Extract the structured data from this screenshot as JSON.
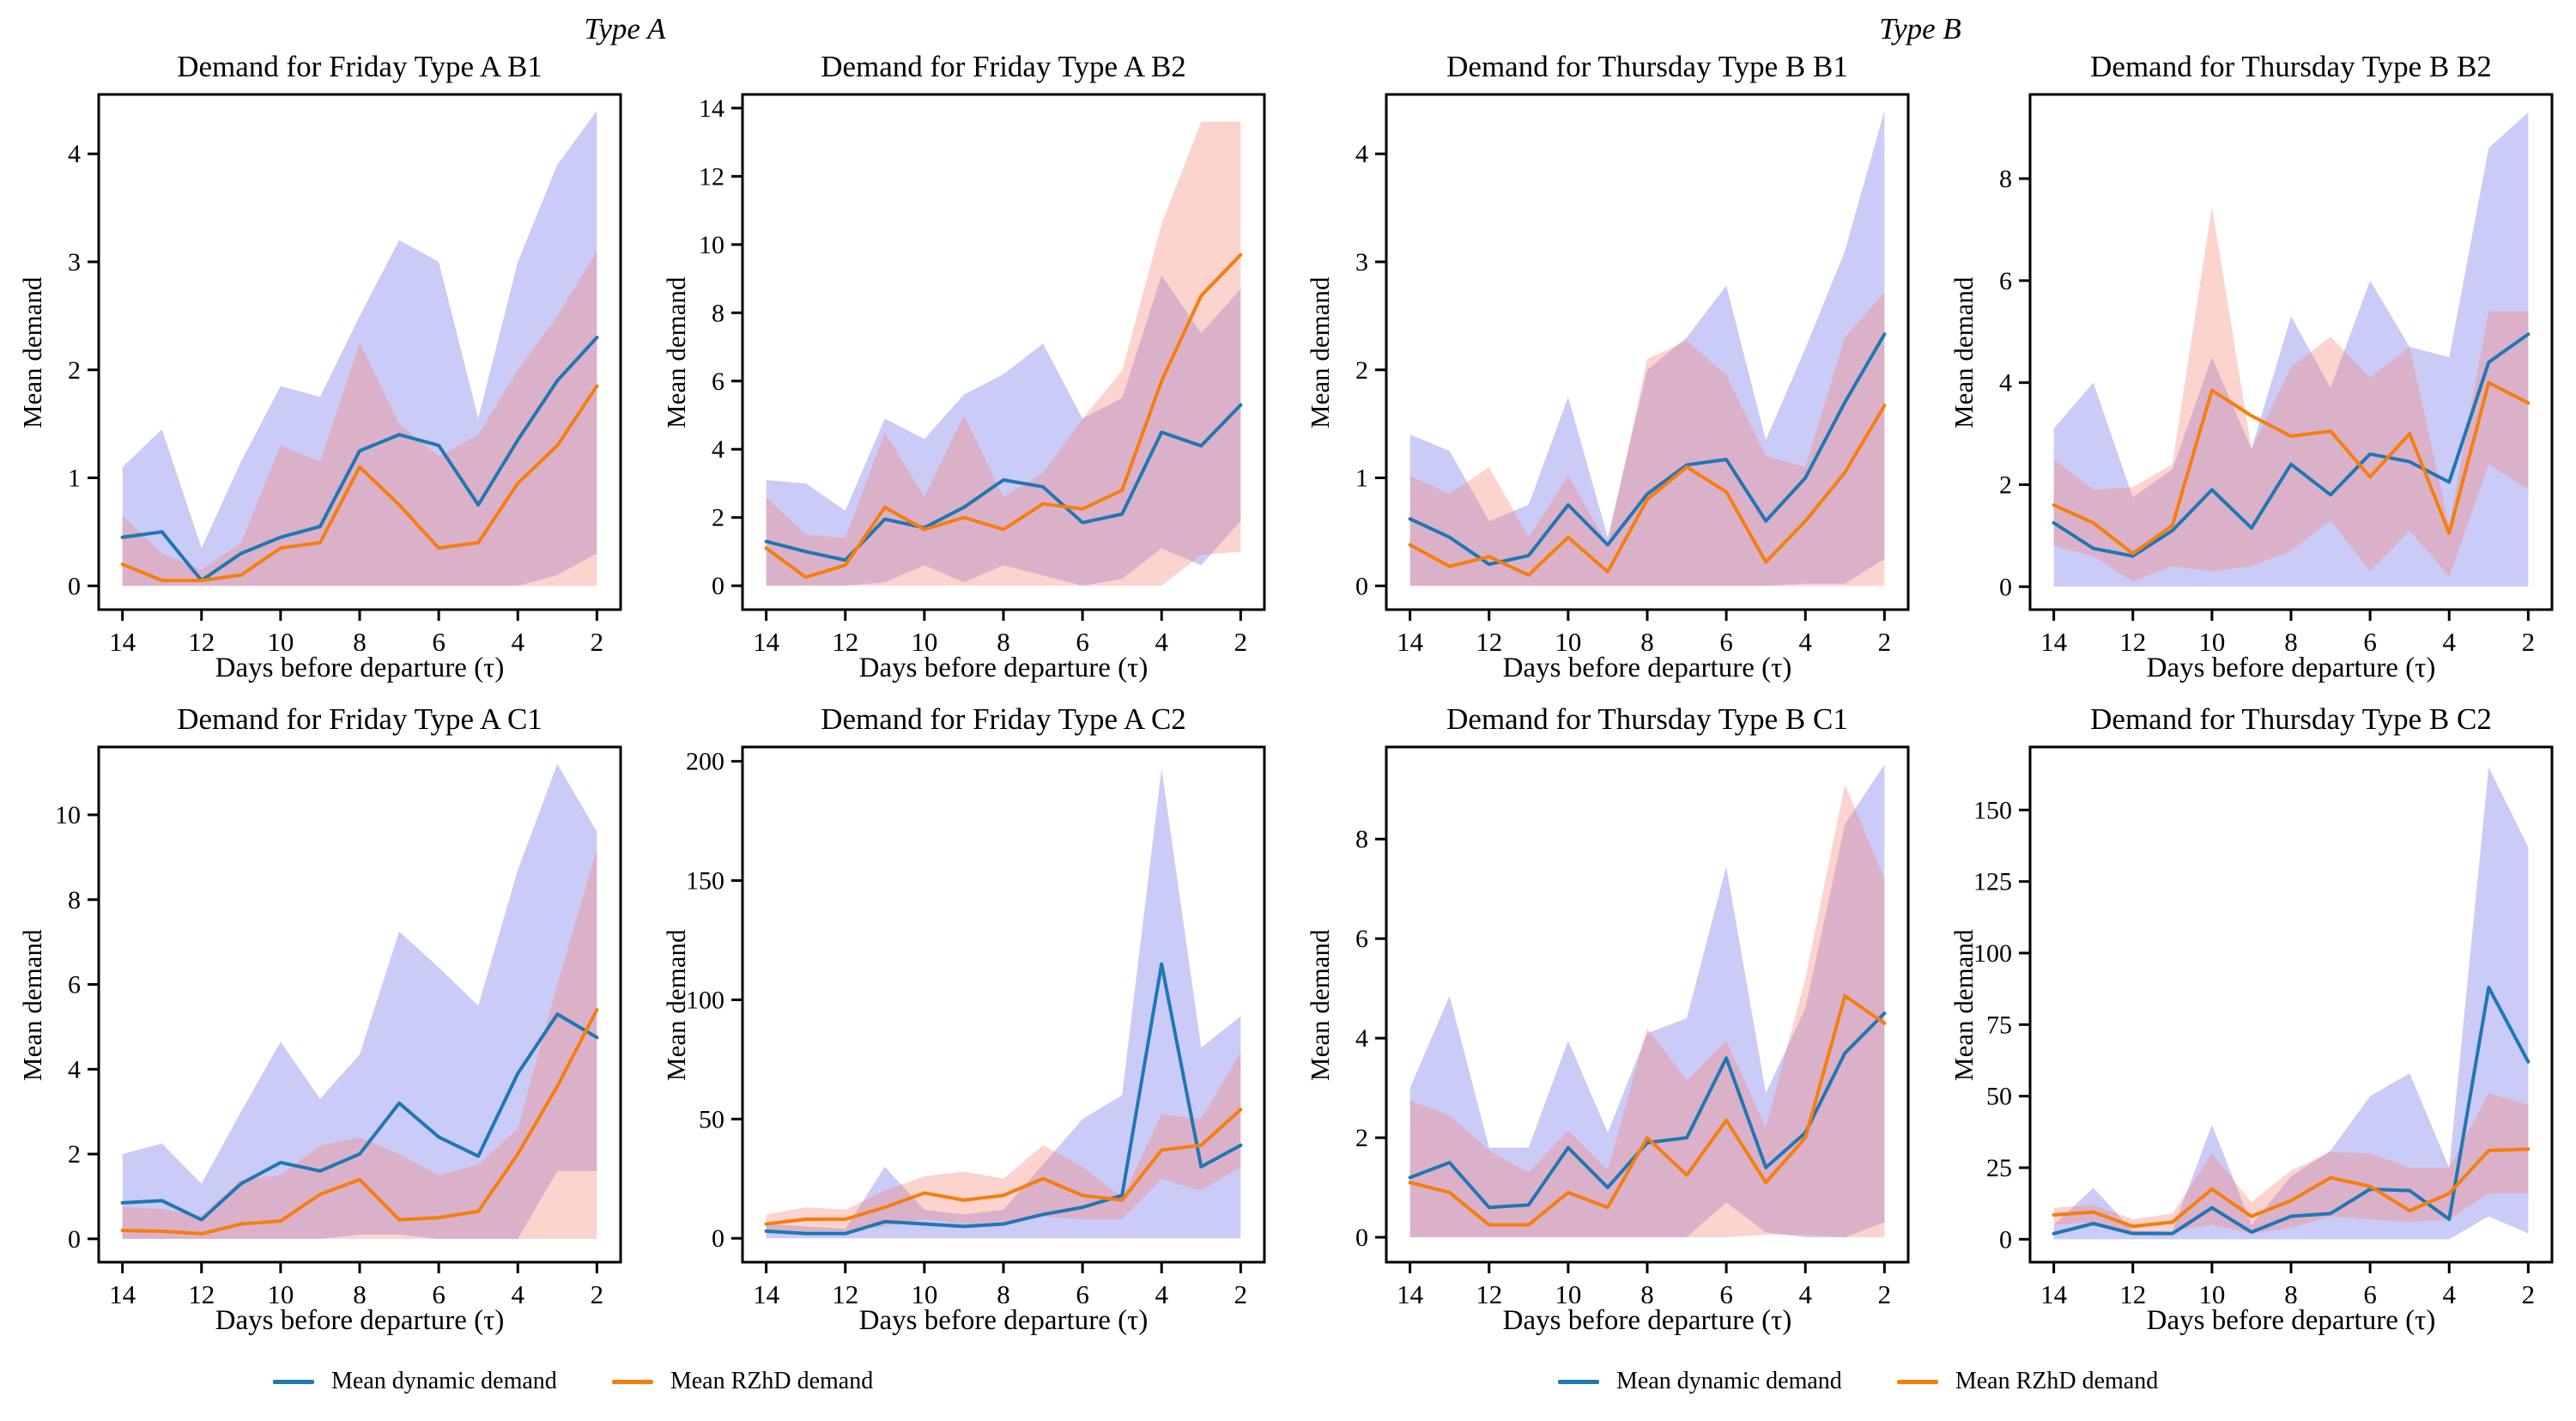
{
  "headers": {
    "type_a": "Type A",
    "type_b": "Type B"
  },
  "colors": {
    "dynamic_line": "#1f77b4",
    "rzhd_line": "#f57e0e",
    "dynamic_band": "rgba(88,88,230,0.31)",
    "rzhd_band": "rgba(250,128,114,0.35)",
    "axis": "#000000"
  },
  "legends": [
    {
      "items": [
        {
          "label": "Mean dynamic demand"
        },
        {
          "label": "Mean RZhD demand"
        }
      ]
    },
    {
      "items": [
        {
          "label": "Mean dynamic demand"
        },
        {
          "label": "Mean RZhD demand"
        }
      ]
    }
  ],
  "chart_data": [
    {
      "type": "line",
      "title": "Demand for Friday Type A B1",
      "xlabel": "Days before departure (τ)",
      "ylabel": "Mean demand",
      "x": [
        14,
        13,
        12,
        11,
        10,
        9,
        8,
        7,
        6,
        5,
        4,
        3,
        2
      ],
      "xticks": [
        14,
        12,
        10,
        8,
        6,
        4,
        2
      ],
      "yticks": [
        0,
        1,
        2,
        3,
        4
      ],
      "xlim": [
        14.6,
        1.4
      ],
      "ylim": [
        -0.22,
        4.55
      ],
      "series": [
        {
          "name": "Mean dynamic demand",
          "values": [
            0.45,
            0.5,
            0.05,
            0.3,
            0.45,
            0.55,
            1.25,
            1.4,
            1.3,
            0.75,
            1.35,
            1.9,
            2.3
          ],
          "band_upper": [
            1.1,
            1.45,
            0.35,
            1.15,
            1.85,
            1.75,
            2.5,
            3.2,
            3.0,
            1.55,
            3.0,
            3.9,
            4.4
          ],
          "band_lower": [
            0,
            0,
            0,
            0,
            0,
            0,
            0,
            0,
            0,
            0,
            0,
            0.1,
            0.3
          ]
        },
        {
          "name": "Mean RZhD demand",
          "values": [
            0.2,
            0.05,
            0.05,
            0.1,
            0.35,
            0.4,
            1.1,
            0.75,
            0.35,
            0.4,
            0.95,
            1.3,
            1.85
          ],
          "band_upper": [
            0.65,
            0.3,
            0.15,
            0.4,
            1.3,
            1.15,
            2.25,
            1.5,
            1.2,
            1.4,
            2.0,
            2.5,
            3.1
          ],
          "band_lower": [
            0,
            0,
            0,
            0,
            0,
            0,
            0,
            0,
            0,
            0,
            0,
            0,
            0
          ]
        }
      ]
    },
    {
      "type": "line",
      "title": "Demand for Friday Type A B2",
      "xlabel": "Days before departure (τ)",
      "ylabel": "Mean demand",
      "x": [
        14,
        13,
        12,
        11,
        10,
        9,
        8,
        7,
        6,
        5,
        4,
        3,
        2
      ],
      "xticks": [
        14,
        12,
        10,
        8,
        6,
        4,
        2
      ],
      "yticks": [
        0,
        2,
        4,
        6,
        8,
        10,
        12,
        14
      ],
      "xlim": [
        14.6,
        1.4
      ],
      "ylim": [
        -0.7,
        14.4
      ],
      "series": [
        {
          "name": "Mean dynamic demand",
          "values": [
            1.3,
            1.0,
            0.75,
            1.95,
            1.7,
            2.3,
            3.1,
            2.9,
            1.85,
            2.1,
            4.5,
            4.1,
            5.3
          ],
          "band_upper": [
            3.1,
            3.0,
            2.2,
            4.9,
            4.3,
            5.6,
            6.2,
            7.1,
            4.9,
            5.5,
            9.1,
            7.4,
            8.7
          ],
          "band_lower": [
            0,
            0,
            0,
            0.1,
            0.6,
            0.1,
            0.6,
            0.3,
            0,
            0.2,
            1.1,
            0.6,
            1.9
          ]
        },
        {
          "name": "Mean RZhD demand",
          "values": [
            1.1,
            0.25,
            0.6,
            2.3,
            1.65,
            2.0,
            1.65,
            2.4,
            2.25,
            2.8,
            6.0,
            8.5,
            9.7
          ],
          "band_upper": [
            2.6,
            1.5,
            1.4,
            4.5,
            2.6,
            5.0,
            2.6,
            3.3,
            4.9,
            6.3,
            10.6,
            13.6,
            13.6
          ],
          "band_lower": [
            0,
            0,
            0,
            0,
            0,
            0,
            0,
            0,
            0,
            0,
            0,
            0.9,
            1.0
          ]
        }
      ]
    },
    {
      "type": "line",
      "title": "Demand for Thursday Type B B1",
      "xlabel": "Days before departure (τ)",
      "ylabel": "Mean demand",
      "x": [
        14,
        13,
        12,
        11,
        10,
        9,
        8,
        7,
        6,
        5,
        4,
        3,
        2
      ],
      "xticks": [
        14,
        12,
        10,
        8,
        6,
        4,
        2
      ],
      "yticks": [
        0,
        1,
        2,
        3,
        4
      ],
      "xlim": [
        14.6,
        1.4
      ],
      "ylim": [
        -0.22,
        4.55
      ],
      "series": [
        {
          "name": "Mean dynamic demand",
          "values": [
            0.62,
            0.45,
            0.2,
            0.28,
            0.75,
            0.38,
            0.85,
            1.12,
            1.17,
            0.6,
            1.0,
            1.7,
            2.33
          ],
          "band_upper": [
            1.4,
            1.25,
            0.6,
            0.75,
            1.75,
            0.45,
            2.0,
            2.3,
            2.78,
            1.35,
            2.2,
            3.1,
            4.4
          ],
          "band_lower": [
            0,
            0,
            0,
            0,
            0,
            0,
            0,
            0,
            0,
            0,
            0.02,
            0.02,
            0.25
          ]
        },
        {
          "name": "Mean RZhD demand",
          "values": [
            0.38,
            0.18,
            0.27,
            0.1,
            0.45,
            0.13,
            0.8,
            1.1,
            0.87,
            0.22,
            0.6,
            1.05,
            1.67
          ],
          "band_upper": [
            1.02,
            0.85,
            1.1,
            0.45,
            1.02,
            0.38,
            2.1,
            2.27,
            1.95,
            1.2,
            1.1,
            2.3,
            2.72
          ],
          "band_lower": [
            0,
            0,
            0,
            0,
            0,
            0,
            0,
            0,
            0,
            0,
            0,
            0,
            0
          ]
        }
      ]
    },
    {
      "type": "line",
      "title": "Demand for Thursday Type B B2",
      "xlabel": "Days before departure (τ)",
      "ylabel": "Mean demand",
      "x": [
        14,
        13,
        12,
        11,
        10,
        9,
        8,
        7,
        6,
        5,
        4,
        3,
        2
      ],
      "xticks": [
        14,
        12,
        10,
        8,
        6,
        4,
        2
      ],
      "yticks": [
        0,
        2,
        4,
        6,
        8
      ],
      "xlim": [
        14.6,
        1.4
      ],
      "ylim": [
        -0.45,
        9.65
      ],
      "series": [
        {
          "name": "Mean dynamic demand",
          "values": [
            1.25,
            0.75,
            0.6,
            1.1,
            1.9,
            1.15,
            2.4,
            1.8,
            2.6,
            2.45,
            2.05,
            4.4,
            4.95
          ],
          "band_upper": [
            3.1,
            4.0,
            1.75,
            2.3,
            4.5,
            2.7,
            5.3,
            3.9,
            6.0,
            4.7,
            4.5,
            8.6,
            9.3
          ],
          "band_lower": [
            0,
            0,
            0,
            0,
            0,
            0,
            0,
            0,
            0,
            0,
            0,
            0,
            0
          ]
        },
        {
          "name": "Mean RZhD demand",
          "values": [
            1.6,
            1.25,
            0.65,
            1.2,
            3.85,
            3.35,
            2.95,
            3.05,
            2.15,
            3.0,
            1.05,
            4.0,
            3.6
          ],
          "band_upper": [
            2.5,
            1.9,
            1.95,
            2.4,
            7.45,
            2.7,
            4.3,
            4.9,
            4.1,
            4.7,
            1.2,
            5.4,
            5.4
          ],
          "band_lower": [
            0.8,
            0.6,
            0.1,
            0.4,
            0.3,
            0.4,
            0.7,
            1.3,
            0.3,
            1.1,
            0.2,
            2.4,
            1.9
          ]
        }
      ]
    },
    {
      "type": "line",
      "title": "Demand for Friday Type A C1",
      "xlabel": "Days before departure (τ)",
      "ylabel": "Mean demand",
      "x": [
        14,
        13,
        12,
        11,
        10,
        9,
        8,
        7,
        6,
        5,
        4,
        3,
        2
      ],
      "xticks": [
        14,
        12,
        10,
        8,
        6,
        4,
        2
      ],
      "yticks": [
        0,
        2,
        4,
        6,
        8,
        10
      ],
      "xlim": [
        14.6,
        1.4
      ],
      "ylim": [
        -0.55,
        11.6
      ],
      "series": [
        {
          "name": "Mean dynamic demand",
          "values": [
            0.85,
            0.9,
            0.45,
            1.3,
            1.8,
            1.6,
            2.0,
            3.2,
            2.4,
            1.95,
            3.9,
            5.3,
            4.75
          ],
          "band_upper": [
            2.0,
            2.25,
            1.3,
            3.0,
            4.65,
            3.3,
            4.35,
            7.25,
            6.4,
            5.5,
            8.7,
            11.2,
            9.6
          ],
          "band_lower": [
            0,
            0,
            0,
            0,
            0,
            0,
            0.1,
            0.1,
            0,
            0,
            0,
            1.6,
            1.6
          ]
        },
        {
          "name": "Mean RZhD demand",
          "values": [
            0.2,
            0.18,
            0.12,
            0.35,
            0.42,
            1.05,
            1.4,
            0.45,
            0.5,
            0.65,
            2.0,
            3.6,
            5.4
          ],
          "band_upper": [
            0.75,
            0.7,
            0.55,
            1.4,
            1.5,
            2.2,
            2.4,
            2.0,
            1.5,
            1.75,
            2.6,
            6.0,
            9.2
          ],
          "band_lower": [
            0,
            0,
            0,
            0,
            0,
            0,
            0,
            0,
            0,
            0,
            0,
            0,
            0
          ]
        }
      ]
    },
    {
      "type": "line",
      "title": "Demand for Friday Type A C2",
      "xlabel": "Days before departure (τ)",
      "ylabel": "Mean demand",
      "x": [
        14,
        13,
        12,
        11,
        10,
        9,
        8,
        7,
        6,
        5,
        4,
        3,
        2
      ],
      "xticks": [
        14,
        12,
        10,
        8,
        6,
        4,
        2
      ],
      "yticks": [
        0,
        50,
        100,
        150,
        200
      ],
      "xlim": [
        14.6,
        1.4
      ],
      "ylim": [
        -10,
        206
      ],
      "series": [
        {
          "name": "Mean dynamic demand",
          "values": [
            3,
            2,
            2,
            7,
            6,
            5,
            6,
            10,
            13,
            18,
            115,
            30,
            39
          ],
          "band_upper": [
            6,
            5,
            4,
            30,
            12,
            10,
            12,
            31,
            50,
            60,
            197,
            80,
            93
          ],
          "band_lower": [
            0,
            0,
            0,
            0,
            0,
            0,
            0,
            0,
            0,
            0,
            0,
            0,
            0
          ]
        },
        {
          "name": "Mean RZhD demand",
          "values": [
            6,
            8,
            8,
            13,
            19,
            16,
            18,
            25,
            18,
            16,
            37,
            39,
            54
          ],
          "band_upper": [
            10,
            13,
            12,
            20,
            26,
            28,
            25,
            39,
            30,
            17,
            52,
            50,
            78
          ],
          "band_lower": [
            2,
            3,
            3,
            5,
            8,
            6,
            7,
            9,
            8,
            8,
            25,
            20,
            30
          ]
        }
      ]
    },
    {
      "type": "line",
      "title": "Demand for Thursday Type B C1",
      "xlabel": "Days before departure (τ)",
      "ylabel": "Mean demand",
      "x": [
        14,
        13,
        12,
        11,
        10,
        9,
        8,
        7,
        6,
        5,
        4,
        3,
        2
      ],
      "xticks": [
        14,
        12,
        10,
        8,
        6,
        4,
        2
      ],
      "yticks": [
        0,
        2,
        4,
        6,
        8
      ],
      "xlim": [
        14.6,
        1.4
      ],
      "ylim": [
        -0.5,
        9.85
      ],
      "series": [
        {
          "name": "Mean dynamic demand",
          "values": [
            1.2,
            1.5,
            0.6,
            0.65,
            1.8,
            1.0,
            1.9,
            2.0,
            3.6,
            1.4,
            2.1,
            3.7,
            4.5
          ],
          "band_upper": [
            3.0,
            4.85,
            1.8,
            1.8,
            3.95,
            2.1,
            4.1,
            4.4,
            7.45,
            2.9,
            4.6,
            8.3,
            9.5
          ],
          "band_lower": [
            0,
            0,
            0,
            0,
            0,
            0,
            0,
            0,
            0.7,
            0.1,
            0,
            0,
            0.3
          ]
        },
        {
          "name": "Mean RZhD demand",
          "values": [
            1.1,
            0.9,
            0.25,
            0.25,
            0.9,
            0.6,
            2.0,
            1.25,
            2.35,
            1.1,
            2.0,
            4.85,
            4.3
          ],
          "band_upper": [
            2.75,
            2.45,
            1.75,
            1.3,
            2.15,
            1.35,
            4.2,
            3.15,
            3.95,
            2.2,
            5.2,
            9.1,
            7.2
          ],
          "band_lower": [
            0,
            0,
            0,
            0,
            0,
            0,
            0,
            0,
            0,
            0.05,
            0.05,
            0,
            0
          ]
        }
      ]
    },
    {
      "type": "line",
      "title": "Demand for Thursday Type B C2",
      "xlabel": "Days before departure (τ)",
      "ylabel": "Mean demand",
      "x": [
        14,
        13,
        12,
        11,
        10,
        9,
        8,
        7,
        6,
        5,
        4,
        3,
        2
      ],
      "xticks": [
        14,
        12,
        10,
        8,
        6,
        4,
        2
      ],
      "yticks": [
        0,
        25,
        50,
        75,
        100,
        125,
        150
      ],
      "xlim": [
        14.6,
        1.4
      ],
      "ylim": [
        -8,
        172
      ],
      "series": [
        {
          "name": "Mean dynamic demand",
          "values": [
            2,
            5.5,
            2,
            2,
            11,
            2.5,
            8,
            9,
            17.5,
            17,
            7,
            88,
            62
          ],
          "band_upper": [
            5,
            18,
            3,
            3,
            40,
            5,
            22,
            31,
            50,
            58,
            25,
            165,
            137
          ],
          "band_lower": [
            0,
            0,
            0,
            0,
            0,
            0,
            0,
            0,
            0,
            0,
            0,
            8,
            2
          ]
        },
        {
          "name": "Mean RZhD demand",
          "values": [
            8.5,
            9.5,
            4.5,
            6,
            17.5,
            8,
            13.5,
            21.5,
            18.5,
            10,
            16,
            31,
            31.5
          ],
          "band_upper": [
            11,
            12,
            7,
            9,
            30,
            13,
            24,
            30.5,
            30,
            25,
            25,
            51,
            47
          ],
          "band_lower": [
            5,
            6,
            2,
            3,
            5,
            2,
            4,
            8,
            7,
            6,
            7,
            16,
            16
          ]
        }
      ]
    }
  ]
}
